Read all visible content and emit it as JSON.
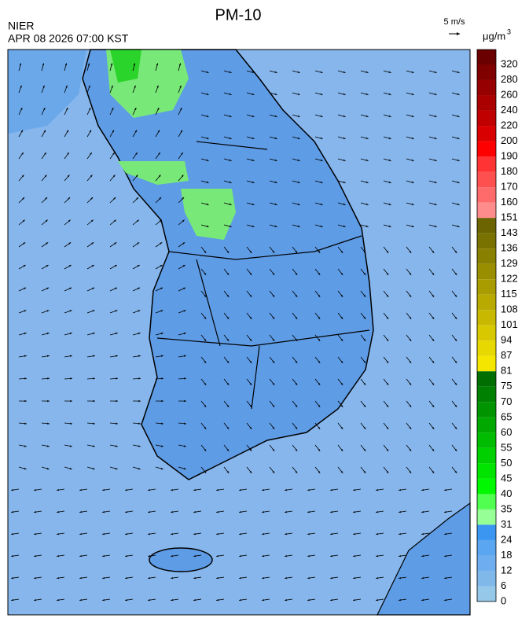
{
  "header": {
    "title": "PM-10",
    "source": "NIER",
    "datetime": "APR 08 2026 07:00 KST",
    "wind_scale": "5 m/s",
    "unit": "μg/m",
    "unit_exponent": "3"
  },
  "colorbar": {
    "labels": [
      320,
      280,
      260,
      240,
      220,
      200,
      190,
      180,
      170,
      160,
      151,
      143,
      136,
      129,
      122,
      115,
      108,
      101,
      94,
      87,
      81,
      75,
      70,
      65,
      60,
      55,
      50,
      45,
      40,
      35,
      31,
      24,
      18,
      12,
      6,
      0
    ],
    "colors": [
      "#6b0000",
      "#800000",
      "#960000",
      "#aa0000",
      "#c00000",
      "#d80000",
      "#ff0000",
      "#ff3333",
      "#ff5050",
      "#ff6a6a",
      "#ff8c8c",
      "#6b6400",
      "#7a7200",
      "#8a8000",
      "#998e00",
      "#a89c00",
      "#b8aa00",
      "#c8b800",
      "#d8c800",
      "#e6d800",
      "#f5e600",
      "#006e00",
      "#008000",
      "#009400",
      "#00a800",
      "#00bc00",
      "#00d000",
      "#00e400",
      "#00f800",
      "#50ff50",
      "#96ff96",
      "#3a96f0",
      "#5aa6f0",
      "#6eaef0",
      "#80b8ea",
      "#96c8ea"
    ]
  }
}
